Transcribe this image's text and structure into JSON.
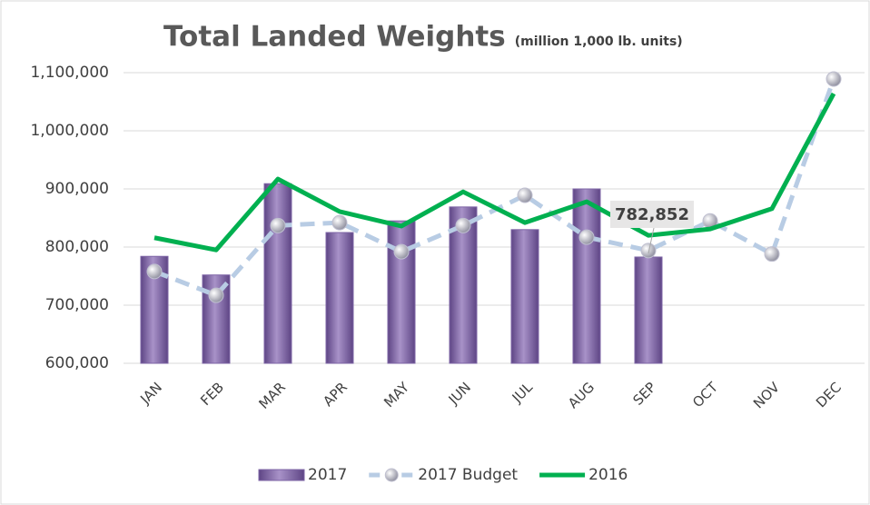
{
  "chart_data": {
    "type": "bar_line",
    "title": "Total Landed Weights",
    "subtitle": "(million 1,000 lb. units)",
    "categories": [
      "JAN",
      "FEB",
      "MAR",
      "APR",
      "MAY",
      "JUN",
      "JUL",
      "AUG",
      "SEP",
      "OCT",
      "NOV",
      "DEC"
    ],
    "series": [
      {
        "name": "2017",
        "type": "bar",
        "color": "#7e65a6",
        "values": [
          784000,
          752000,
          909000,
          825000,
          845000,
          869000,
          830000,
          900000,
          782852,
          null,
          null,
          null
        ],
        "value_labels": [
          null,
          null,
          null,
          null,
          null,
          null,
          null,
          null,
          "782,852",
          null,
          null,
          null
        ]
      },
      {
        "name": "2017 Budget",
        "type": "line",
        "color": "#b8cce4",
        "dashed": true,
        "markers": true,
        "values": [
          758000,
          717000,
          837000,
          842000,
          792000,
          837000,
          889000,
          817000,
          794000,
          845000,
          788000,
          1089000
        ]
      },
      {
        "name": "2016",
        "type": "line",
        "color": "#00b050",
        "values": [
          816000,
          795000,
          917000,
          861000,
          836000,
          895000,
          842000,
          878000,
          820000,
          831000,
          866000,
          1064000
        ]
      }
    ],
    "ylim": [
      600000,
      1100000
    ],
    "yticks": [
      {
        "value": 600000,
        "label": "600,000"
      },
      {
        "value": 700000,
        "label": "700,000"
      },
      {
        "value": 800000,
        "label": "800,000"
      },
      {
        "value": 900000,
        "label": "900,000"
      },
      {
        "value": 1000000,
        "label": "1,000,000"
      },
      {
        "value": 1100000,
        "label": "1,100,000"
      }
    ],
    "grid": true,
    "legend": "bottom"
  }
}
